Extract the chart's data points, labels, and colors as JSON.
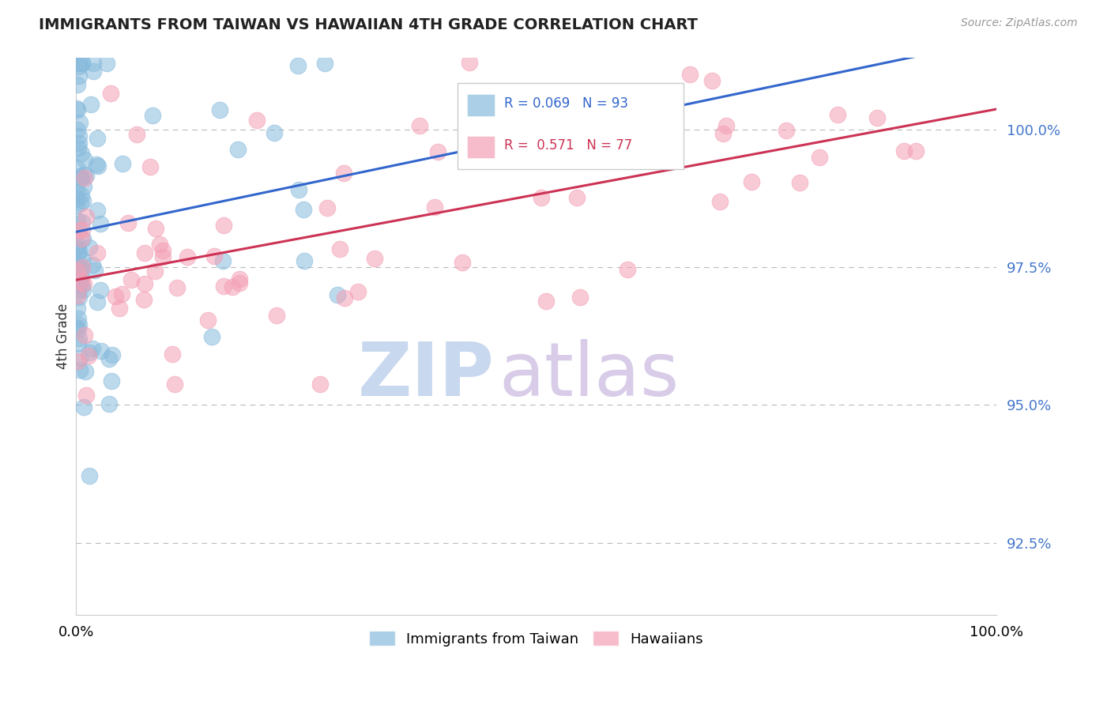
{
  "title": "IMMIGRANTS FROM TAIWAN VS HAWAIIAN 4TH GRADE CORRELATION CHART",
  "source_text": "Source: ZipAtlas.com",
  "ylabel": "4th Grade",
  "ytick_values": [
    92.5,
    95.0,
    97.5,
    100.0
  ],
  "ylim": [
    91.2,
    101.3
  ],
  "xlim": [
    0.0,
    100.0
  ],
  "r_blue": 0.069,
  "n_blue": 93,
  "r_pink": 0.571,
  "n_pink": 77,
  "blue_color": "#88bbdd",
  "pink_color": "#f4a0b5",
  "blue_line_color": "#3366cc",
  "pink_line_color": "#cc3355",
  "watermark_zip": "ZIP",
  "watermark_atlas": "atlas",
  "watermark_color_zip": "#c8d8ee",
  "watermark_color_atlas": "#d8cce8",
  "legend_blue_text_color": "#3366cc",
  "legend_pink_text_color": "#cc3355"
}
